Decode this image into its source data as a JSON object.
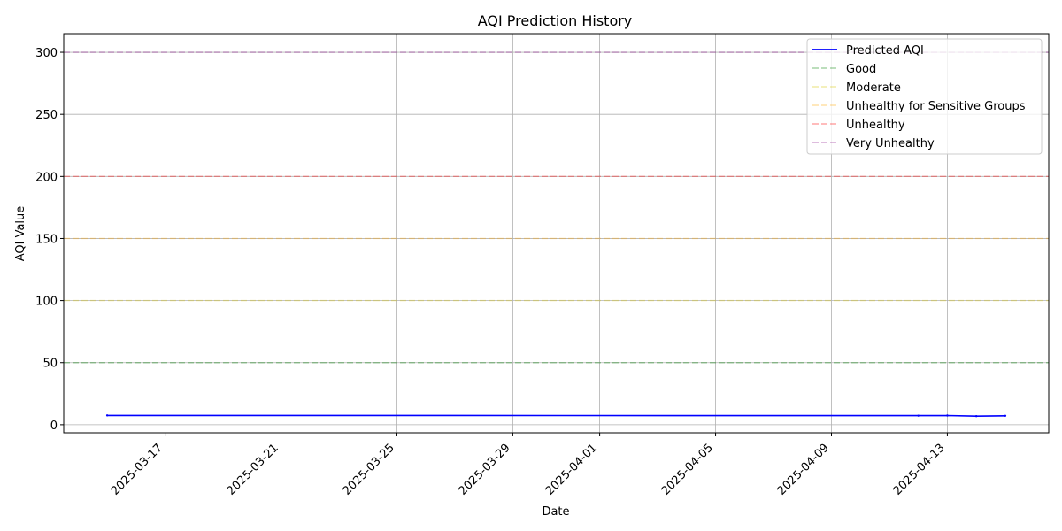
{
  "chart_data": {
    "type": "line",
    "title": "AQI Prediction History",
    "xlabel": "Date",
    "ylabel": "AQI Value",
    "xlim": [
      "2025-03-13T12:00",
      "2025-04-16T12:00"
    ],
    "ylim": [
      -6.5,
      315
    ],
    "x_ticks": [
      "2025-03-17",
      "2025-03-21",
      "2025-03-25",
      "2025-03-29",
      "2025-04-01",
      "2025-04-05",
      "2025-04-09",
      "2025-04-13"
    ],
    "y_ticks": [
      0,
      50,
      100,
      150,
      200,
      250,
      300
    ],
    "grid": true,
    "legend_position": "top-right",
    "series": [
      {
        "name": "Predicted AQI",
        "color": "#0000ff",
        "style": "solid",
        "x": [
          "2025-03-15",
          "2025-04-12",
          "2025-04-13",
          "2025-04-14",
          "2025-04-15"
        ],
        "y": [
          7.5,
          7.3,
          7.4,
          6.9,
          7.2
        ]
      }
    ],
    "thresholds": [
      {
        "name": "Good",
        "value": 50,
        "color": "#008000"
      },
      {
        "name": "Moderate",
        "value": 100,
        "color": "#d4c200"
      },
      {
        "name": "Unhealthy for Sensitive Groups",
        "value": 150,
        "color": "#ffa500"
      },
      {
        "name": "Unhealthy",
        "value": 200,
        "color": "#ff0000"
      },
      {
        "name": "Very Unhealthy",
        "value": 300,
        "color": "#800080"
      }
    ]
  }
}
